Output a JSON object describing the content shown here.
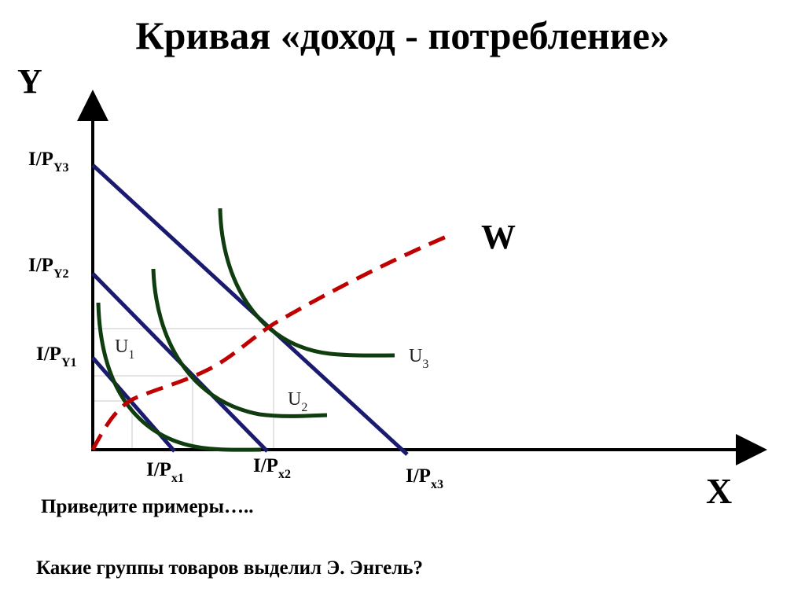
{
  "title": "Кривая «доход - потребление»",
  "axes": {
    "y": "Y",
    "x": "X"
  },
  "y_intercepts": [
    {
      "text": "I/P",
      "sub": "Y3"
    },
    {
      "text": "I/P",
      "sub": "Y2"
    },
    {
      "text": "I/P",
      "sub": "Y1"
    }
  ],
  "x_intercepts": [
    {
      "text": "I/P",
      "sub": "x1"
    },
    {
      "text": "I/P",
      "sub": "x2"
    },
    {
      "text": "I/P",
      "sub": "x3"
    }
  ],
  "curves": [
    {
      "text": "U",
      "sub": "1"
    },
    {
      "text": "U",
      "sub": "2"
    },
    {
      "text": "U",
      "sub": "3"
    }
  ],
  "icc_label": "W",
  "notes": [
    "Приведите примеры…..",
    "Какие группы товаров выделил Э. Энгель?"
  ]
}
